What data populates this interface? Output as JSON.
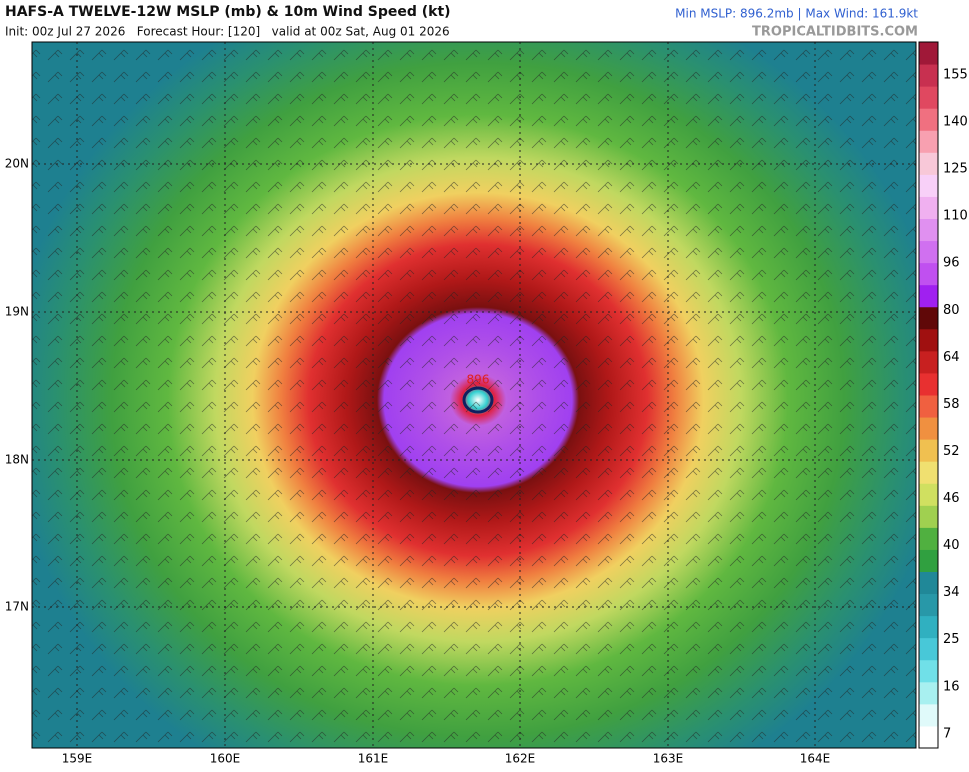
{
  "header": {
    "title": "HAFS-A TWELVE-12W MSLP (mb) & 10m Wind Speed (kt)",
    "subtitle": "Init: 00z Jul 27 2026   Forecast Hour: [120]   valid at 00z Sat, Aug 01 2026",
    "stats": "Min MSLP: 896.2mb | Max Wind: 161.9kt",
    "source": "TROPICALTIDBITS.COM"
  },
  "map": {
    "lat_labels": [
      "20N",
      "19N",
      "18N",
      "17N"
    ],
    "lon_labels": [
      "159E",
      "160E",
      "161E",
      "162E",
      "163E",
      "164E"
    ],
    "center_label": "896"
  },
  "colorbar": {
    "ticks": [
      "7",
      "16",
      "25",
      "34",
      "40",
      "46",
      "52",
      "58",
      "64",
      "80",
      "96",
      "110",
      "125",
      "140",
      "155"
    ]
  }
}
